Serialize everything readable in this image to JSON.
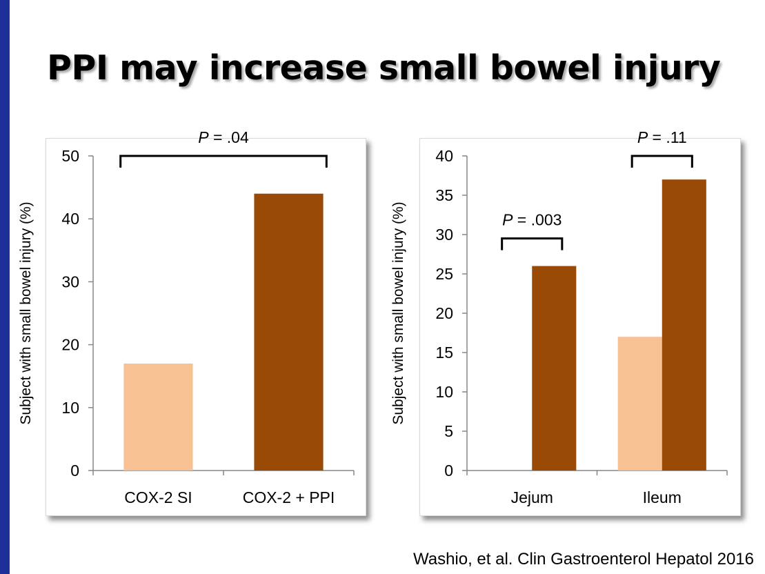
{
  "slide": {
    "title": "PPI may increase small bowel injury",
    "citation": "Washio, et al. Clin Gastroenterol Hepatol 2016"
  },
  "colors": {
    "left_bar": "#1f2f99",
    "cox2_si": "#f8c193",
    "cox2_ppi": "#994a07",
    "axis": "#868686"
  },
  "chart_data": [
    {
      "type": "bar",
      "categories": [
        "COX-2 SI",
        "COX-2 + PPI"
      ],
      "series": [
        {
          "values": [
            17,
            44
          ],
          "colors": [
            "#f8c193",
            "#994a07"
          ]
        }
      ],
      "ylabel": "Subject with small bowel injury (%)",
      "ylim": [
        0,
        50
      ],
      "yticks": [
        0,
        10,
        20,
        30,
        40,
        50
      ],
      "grid": false,
      "annotations": [
        {
          "label_prefix": "P",
          "label_value": " = .04",
          "from_category": 0,
          "to_category": 1
        }
      ]
    },
    {
      "type": "bar",
      "categories": [
        "Jejum",
        "Ileum"
      ],
      "series": [
        {
          "values": [
            0,
            17
          ],
          "color": "#f8c193"
        },
        {
          "values": [
            26,
            37
          ],
          "color": "#994a07"
        }
      ],
      "ylabel": "Subject with small bowel injury (%)",
      "ylim": [
        0,
        40
      ],
      "yticks": [
        0,
        5,
        10,
        15,
        20,
        25,
        30,
        35,
        40
      ],
      "grid": false,
      "annotations": [
        {
          "label_prefix": "P",
          "label_value": " = .003",
          "category": 0
        },
        {
          "label_prefix": "P",
          "label_value": " = .11",
          "category": 1
        }
      ]
    }
  ]
}
